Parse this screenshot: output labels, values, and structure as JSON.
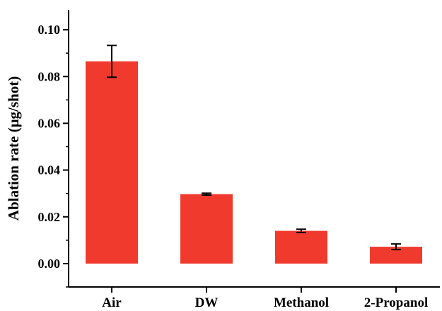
{
  "chart_data": {
    "type": "bar",
    "categories": [
      "Air",
      "DW",
      "Methanol",
      "2-Propanol"
    ],
    "values": [
      0.0865,
      0.0297,
      0.014,
      0.0072
    ],
    "errors": [
      0.0068,
      0.0004,
      0.0007,
      0.0012
    ],
    "title": "",
    "xlabel": "",
    "ylabel": "Ablation rate (μg/shot)",
    "ylim": [
      -0.01,
      0.1085
    ],
    "yticks": [
      0.0,
      0.02,
      0.04,
      0.06,
      0.08,
      0.1
    ],
    "ytick_labels": [
      "0.00",
      "0.02",
      "0.04",
      "0.06",
      "0.08",
      "0.10"
    ],
    "bar_color": "#ef3a2d",
    "error_bar_color": "#000000",
    "grid": false,
    "legend": "none"
  }
}
